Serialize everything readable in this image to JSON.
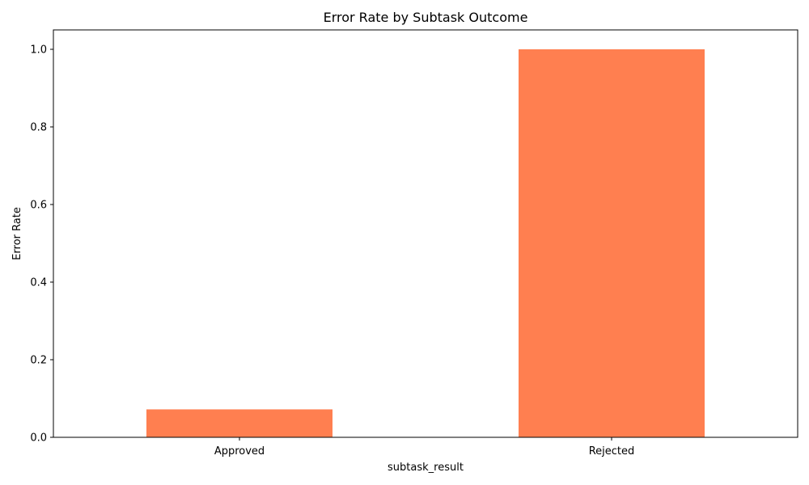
{
  "chart_data": {
    "type": "bar",
    "title": "Error Rate by Subtask Outcome",
    "xlabel": "subtask_result",
    "ylabel": "Error Rate",
    "categories": [
      "Approved",
      "Rejected"
    ],
    "values": [
      0.072,
      1.0
    ],
    "ylim": [
      0,
      1.05
    ],
    "yticks": [
      "0.0",
      "0.2",
      "0.4",
      "0.6",
      "0.8",
      "1.0"
    ],
    "bar_color": "#ff7f50",
    "grid": false,
    "legend": "none"
  }
}
